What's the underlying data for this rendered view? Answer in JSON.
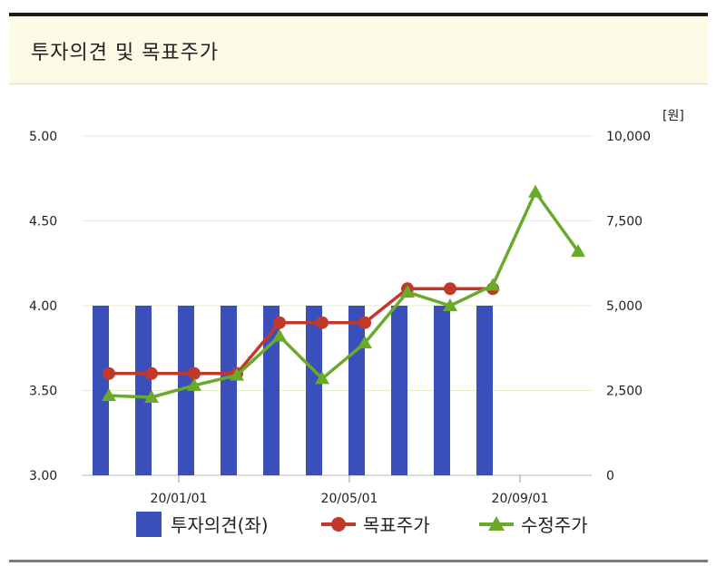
{
  "header": {
    "title": "투자의견 및 목표주가"
  },
  "chart_data": {
    "type": "bar+line",
    "title": "투자의견 및 목표주가",
    "y_left": {
      "range": [
        3.0,
        5.0
      ],
      "ticks": [
        "5.00",
        "4.50",
        "4.00",
        "3.50",
        "3.00"
      ],
      "tick_values": [
        5.0,
        4.5,
        4.0,
        3.5,
        3.0
      ]
    },
    "y_right": {
      "unit_label": "[원]",
      "range": [
        0,
        10000
      ],
      "ticks": [
        "10,000",
        "7,500",
        "5,000",
        "2,500",
        "0"
      ],
      "tick_values": [
        10000,
        7500,
        5000,
        2500,
        0
      ]
    },
    "x_ticks": [
      "20/01/01",
      "20/05/01",
      "20/09/01"
    ],
    "x_tick_positions": [
      2,
      6,
      10
    ],
    "series": [
      {
        "name": "투자의견(좌)",
        "type": "bar",
        "axis": "left",
        "color": "#3b4fbb",
        "x": [
          0,
          1,
          2,
          3,
          4,
          5,
          6,
          7,
          8,
          9
        ],
        "values": [
          4.0,
          4.0,
          4.0,
          4.0,
          4.0,
          4.0,
          4.0,
          4.0,
          4.0,
          4.0
        ]
      },
      {
        "name": "목표주가",
        "type": "line",
        "marker": "circle",
        "axis": "right",
        "color": "#c0392b",
        "x": [
          0,
          1,
          2,
          3,
          4,
          5,
          6,
          7,
          8,
          9
        ],
        "values": [
          3000,
          3000,
          3000,
          3000,
          4500,
          4500,
          4500,
          5500,
          5500,
          5500
        ]
      },
      {
        "name": "수정주가",
        "type": "line",
        "marker": "triangle",
        "axis": "right",
        "color": "#6aaa2a",
        "x": [
          0,
          1,
          2,
          3,
          4,
          5,
          6,
          7,
          8,
          9,
          10,
          11
        ],
        "values": [
          2350,
          2300,
          2650,
          2950,
          4100,
          2850,
          3900,
          5400,
          5000,
          5600,
          8350,
          6600
        ]
      }
    ],
    "grid": true,
    "legend_position": "bottom"
  }
}
